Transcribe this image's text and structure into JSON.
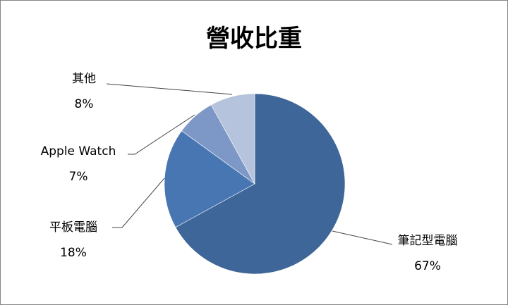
{
  "chart_data": {
    "type": "pie",
    "title": "營收比重",
    "start_angle": "12 o'clock",
    "direction": "clockwise",
    "slices": [
      {
        "label": "筆記型電腦",
        "value": 67,
        "value_label": "67%",
        "color": "#3f6698"
      },
      {
        "label": "平板電腦",
        "value": 18,
        "value_label": "18%",
        "color": "#4876b2"
      },
      {
        "label": "Apple Watch",
        "value": 7,
        "value_label": "7%",
        "color": "#7d98c6"
      },
      {
        "label": "其他",
        "value": 8,
        "value_label": "8%",
        "color": "#b5c3dd"
      }
    ],
    "legend": "none",
    "data_labels": "outside with leader lines"
  }
}
